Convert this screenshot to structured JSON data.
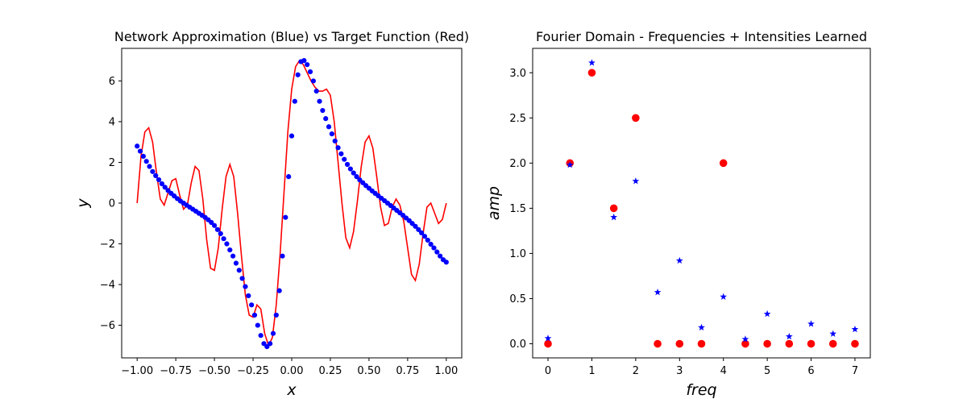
{
  "colors": {
    "network": "#0000ff",
    "target": "#ff0000",
    "axis": "#000000"
  },
  "chart_data": [
    {
      "type": "line+scatter",
      "title": "Network Approximation (Blue) vs Target Function (Red)",
      "xlabel": "x",
      "ylabel": "y",
      "xlim": [
        -1.1,
        1.1
      ],
      "ylim": [
        -7.6,
        7.6
      ],
      "xticks": [
        -1.0,
        -0.75,
        -0.5,
        -0.25,
        0.0,
        0.25,
        0.5,
        0.75,
        1.0
      ],
      "xtick_labels": [
        "−1.00",
        "−0.75",
        "−0.50",
        "−0.25",
        "0.00",
        "0.25",
        "0.50",
        "0.75",
        "1.00"
      ],
      "yticks": [
        -6,
        -4,
        -2,
        0,
        2,
        4,
        6
      ],
      "ytick_labels": [
        "−6",
        "−4",
        "−2",
        "0",
        "2",
        "4",
        "6"
      ],
      "series": [
        {
          "name": "Target Function",
          "kind": "line",
          "color": "#ff0000",
          "x": [
            -1.0,
            -0.975,
            -0.95,
            -0.925,
            -0.9,
            -0.875,
            -0.85,
            -0.825,
            -0.8,
            -0.775,
            -0.75,
            -0.725,
            -0.7,
            -0.675,
            -0.65,
            -0.625,
            -0.6,
            -0.575,
            -0.55,
            -0.525,
            -0.5,
            -0.475,
            -0.45,
            -0.425,
            -0.4,
            -0.375,
            -0.35,
            -0.325,
            -0.3,
            -0.275,
            -0.25,
            -0.225,
            -0.2,
            -0.175,
            -0.15,
            -0.125,
            -0.1,
            -0.075,
            -0.05,
            -0.025,
            0.0,
            0.025,
            0.05,
            0.075,
            0.1,
            0.125,
            0.15,
            0.175,
            0.2,
            0.225,
            0.25,
            0.275,
            0.3,
            0.325,
            0.35,
            0.375,
            0.4,
            0.425,
            0.45,
            0.475,
            0.5,
            0.525,
            0.55,
            0.575,
            0.6,
            0.625,
            0.65,
            0.675,
            0.7,
            0.725,
            0.75,
            0.775,
            0.8,
            0.825,
            0.85,
            0.875,
            0.9,
            0.925,
            0.95,
            0.975,
            1.0
          ],
          "y": [
            0.0,
            2.3,
            3.5,
            3.7,
            3.0,
            1.5,
            0.2,
            -0.1,
            0.5,
            1.1,
            1.2,
            0.4,
            -0.3,
            -0.1,
            1.0,
            1.8,
            1.6,
            0.2,
            -1.8,
            -3.2,
            -3.3,
            -2.2,
            -0.3,
            1.3,
            1.9,
            1.3,
            -0.5,
            -2.6,
            -4.5,
            -5.5,
            -5.6,
            -5.0,
            -5.2,
            -6.4,
            -7.0,
            -6.6,
            -5.0,
            -2.5,
            0.5,
            3.5,
            5.6,
            6.7,
            7.0,
            6.8,
            6.4,
            6.0,
            5.7,
            5.5,
            5.5,
            5.6,
            5.3,
            4.0,
            2.0,
            0.0,
            -1.7,
            -2.2,
            -1.4,
            0.1,
            1.8,
            3.0,
            3.3,
            2.7,
            1.3,
            -0.2,
            -1.1,
            -1.0,
            -0.2,
            0.2,
            -0.1,
            -0.9,
            -2.2,
            -3.5,
            -3.8,
            -3.0,
            -1.5,
            -0.2,
            0.0,
            -0.5,
            -1.0,
            -0.8,
            0.0
          ]
        },
        {
          "name": "Network Approximation",
          "kind": "scatter",
          "color": "#0000ff",
          "x": [
            -1.0,
            -0.98,
            -0.96,
            -0.94,
            -0.92,
            -0.9,
            -0.88,
            -0.86,
            -0.84,
            -0.82,
            -0.8,
            -0.78,
            -0.76,
            -0.74,
            -0.72,
            -0.7,
            -0.68,
            -0.66,
            -0.64,
            -0.62,
            -0.6,
            -0.58,
            -0.56,
            -0.54,
            -0.52,
            -0.5,
            -0.48,
            -0.46,
            -0.44,
            -0.42,
            -0.4,
            -0.38,
            -0.36,
            -0.34,
            -0.32,
            -0.3,
            -0.28,
            -0.26,
            -0.24,
            -0.22,
            -0.2,
            -0.18,
            -0.16,
            -0.14,
            -0.12,
            -0.1,
            -0.08,
            -0.06,
            -0.04,
            -0.02,
            0.0,
            0.02,
            0.04,
            0.06,
            0.08,
            0.1,
            0.12,
            0.14,
            0.16,
            0.18,
            0.2,
            0.22,
            0.24,
            0.26,
            0.28,
            0.3,
            0.32,
            0.34,
            0.36,
            0.38,
            0.4,
            0.42,
            0.44,
            0.46,
            0.48,
            0.5,
            0.52,
            0.54,
            0.56,
            0.58,
            0.6,
            0.62,
            0.64,
            0.66,
            0.68,
            0.7,
            0.72,
            0.74,
            0.76,
            0.78,
            0.8,
            0.82,
            0.84,
            0.86,
            0.88,
            0.9,
            0.92,
            0.94,
            0.96,
            0.98,
            1.0
          ],
          "y": [
            2.8,
            2.55,
            2.3,
            2.05,
            1.8,
            1.55,
            1.35,
            1.15,
            0.95,
            0.78,
            0.62,
            0.48,
            0.35,
            0.22,
            0.1,
            0.0,
            -0.1,
            -0.2,
            -0.3,
            -0.4,
            -0.5,
            -0.6,
            -0.7,
            -0.82,
            -0.95,
            -1.1,
            -1.3,
            -1.5,
            -1.75,
            -2.0,
            -2.3,
            -2.6,
            -2.95,
            -3.3,
            -3.7,
            -4.1,
            -4.55,
            -5.0,
            -5.5,
            -6.0,
            -6.5,
            -6.9,
            -7.05,
            -6.9,
            -6.4,
            -5.5,
            -4.3,
            -2.6,
            -0.7,
            1.3,
            3.3,
            5.0,
            6.3,
            6.95,
            7.0,
            6.8,
            6.45,
            6.0,
            5.5,
            5.0,
            4.55,
            4.15,
            3.75,
            3.4,
            3.05,
            2.72,
            2.42,
            2.15,
            1.9,
            1.68,
            1.48,
            1.3,
            1.14,
            1.0,
            0.86,
            0.73,
            0.6,
            0.48,
            0.36,
            0.24,
            0.12,
            0.0,
            -0.12,
            -0.24,
            -0.36,
            -0.48,
            -0.6,
            -0.73,
            -0.86,
            -1.0,
            -1.14,
            -1.3,
            -1.46,
            -1.63,
            -1.82,
            -2.02,
            -2.2,
            -2.4,
            -2.6,
            -2.78,
            -2.9
          ]
        }
      ]
    },
    {
      "type": "scatter",
      "title": "Fourier Domain - Frequencies + Intensities Learned",
      "xlabel": "freq",
      "ylabel": "amp",
      "xlim": [
        -0.35,
        7.35
      ],
      "ylim": [
        -0.156,
        3.27
      ],
      "xticks": [
        0,
        1,
        2,
        3,
        4,
        5,
        6,
        7
      ],
      "xtick_labels": [
        "0",
        "1",
        "2",
        "3",
        "4",
        "5",
        "6",
        "7"
      ],
      "yticks": [
        0.0,
        0.5,
        1.0,
        1.5,
        2.0,
        2.5,
        3.0
      ],
      "ytick_labels": [
        "0.0",
        "0.5",
        "1.0",
        "1.5",
        "2.0",
        "2.5",
        "3.0"
      ],
      "series": [
        {
          "name": "Target",
          "marker": "circle",
          "color": "#ff0000",
          "x": [
            0,
            0.5,
            1,
            1.5,
            2,
            2.5,
            3,
            3.5,
            4,
            4.5,
            5,
            5.5,
            6,
            6.5,
            7
          ],
          "y": [
            0.0,
            2.0,
            3.0,
            1.5,
            2.5,
            0.0,
            0.0,
            0.0,
            2.0,
            0.0,
            0.0,
            0.0,
            0.0,
            0.0,
            0.0
          ]
        },
        {
          "name": "Learned",
          "marker": "star",
          "color": "#0000ff",
          "x": [
            0,
            0.5,
            1,
            1.5,
            2,
            2.5,
            3,
            3.5,
            4,
            4.5,
            5,
            5.5,
            6,
            6.5,
            7
          ],
          "y": [
            0.06,
            1.98,
            3.11,
            1.4,
            1.8,
            0.57,
            0.92,
            0.18,
            0.52,
            0.05,
            0.33,
            0.08,
            0.22,
            0.11,
            0.16
          ]
        }
      ]
    }
  ]
}
